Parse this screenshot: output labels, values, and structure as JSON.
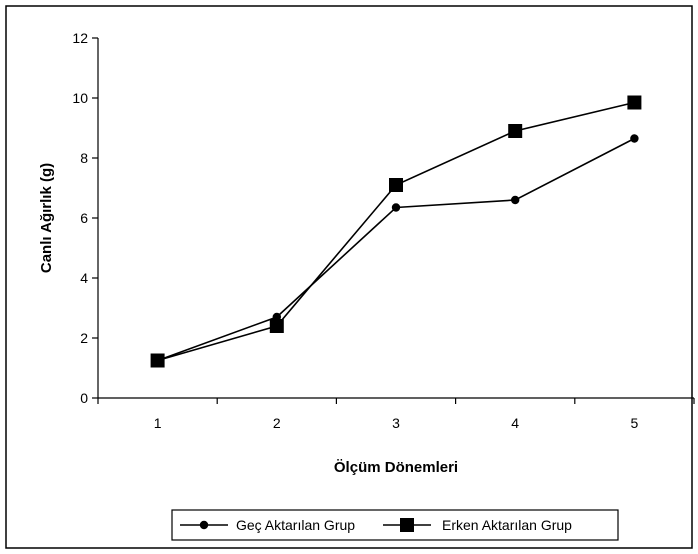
{
  "chart_data": {
    "type": "line",
    "x": [
      1,
      2,
      3,
      4,
      5
    ],
    "xlabel": "Ölçüm Dönemleri",
    "ylabel": "Canlı Ağırlık (g)",
    "ylim": [
      0,
      12
    ],
    "yticks": [
      0,
      2,
      4,
      6,
      8,
      10,
      12
    ],
    "xtick_labels": [
      "1",
      "2",
      "3",
      "4",
      "5"
    ],
    "grid": false,
    "legend_position": "bottom",
    "series": [
      {
        "name": "Geç Aktarılan Grup",
        "marker": "circle",
        "color": "#000000",
        "values": [
          1.25,
          2.7,
          6.35,
          6.6,
          8.65
        ]
      },
      {
        "name": "Erken Aktarılan Grup",
        "marker": "square",
        "color": "#000000",
        "values": [
          1.25,
          2.4,
          7.1,
          8.9,
          9.85
        ]
      }
    ]
  }
}
